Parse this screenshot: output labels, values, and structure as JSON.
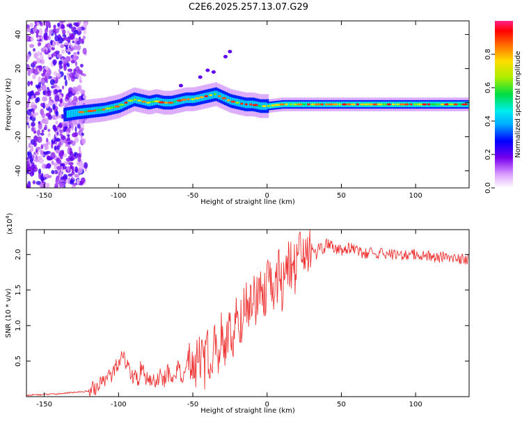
{
  "title": "C2E6.2025.257.13.07.G29",
  "chart_data": [
    {
      "type": "heatmap",
      "xlabel": "Height of straight line (km)",
      "ylabel": "Frequency (Hz)",
      "xlim": [
        -162,
        136
      ],
      "ylim": [
        -50,
        48
      ],
      "xticks": [
        -150,
        -100,
        -50,
        0,
        50,
        100
      ],
      "yticks": [
        -40,
        -20,
        0,
        20,
        40
      ],
      "grid": false,
      "ridge": {
        "x": [
          -137,
          -130,
          -120,
          -110,
          -100,
          -95,
          -90,
          -85,
          -80,
          -75,
          -70,
          -65,
          -60,
          -55,
          -50,
          -45,
          -40,
          -35,
          -30,
          -25,
          -20,
          -15,
          -10,
          -5,
          0,
          10,
          20,
          40,
          60,
          80,
          100,
          120,
          135
        ],
        "y": [
          -7,
          -6,
          -5,
          -4,
          -2,
          0,
          2,
          1,
          0,
          1,
          0,
          0,
          1,
          2,
          2,
          3,
          4,
          5,
          3,
          1,
          0,
          -1,
          -1,
          -2,
          -2,
          -1,
          -1,
          -1,
          -1,
          -1,
          -1,
          -1,
          -1
        ]
      },
      "colorbar": {
        "label": "Normalized spectral amplitude",
        "range": [
          0,
          1
        ],
        "ticks": [
          0.0,
          0.2,
          0.4,
          0.6,
          0.8
        ]
      }
    },
    {
      "type": "line",
      "xlabel": "Height of straight line (km)",
      "ylabel": "SNR (10 * v/v)",
      "y_multiplier": "(x10",
      "y_multiplier_exp": "4",
      "y_multiplier_close": ")",
      "xlim": [
        -162,
        136
      ],
      "ylim": [
        0,
        2.35
      ],
      "xticks": [
        -150,
        -100,
        -50,
        0,
        50,
        100
      ],
      "yticks": [
        0.5,
        1.0,
        1.5,
        2.0
      ],
      "grid": false,
      "color": "#ee3333",
      "series": [
        {
          "x": [
            -162,
            -150,
            -140,
            -130,
            -120,
            -115,
            -110,
            -105,
            -102,
            -100,
            -97,
            -95,
            -92,
            -90,
            -87,
            -85,
            -82,
            -80,
            -77,
            -75,
            -72,
            -70,
            -67,
            -65,
            -62,
            -60,
            -57,
            -55,
            -52,
            -50,
            -47,
            -45,
            -42,
            -40,
            -38,
            -35,
            -33,
            -30,
            -28,
            -25,
            -23,
            -20,
            -18,
            -15,
            -13,
            -10,
            -8,
            -5,
            -3,
            0,
            3,
            5,
            8,
            10,
            13,
            15,
            18,
            20,
            23,
            25,
            28,
            30,
            33,
            35,
            38,
            40,
            45,
            50,
            55,
            60,
            65,
            70,
            75,
            80,
            85,
            90,
            95,
            100,
            105,
            110,
            115,
            120,
            125,
            130,
            136
          ],
          "y": [
            0.02,
            0.03,
            0.04,
            0.06,
            0.08,
            0.12,
            0.2,
            0.3,
            0.4,
            0.5,
            0.55,
            0.45,
            0.35,
            0.28,
            0.22,
            0.4,
            0.3,
            0.2,
            0.25,
            0.15,
            0.3,
            0.2,
            0.35,
            0.25,
            0.3,
            0.4,
            0.25,
            0.35,
            0.45,
            0.3,
            0.5,
            0.6,
            0.4,
            0.7,
            0.55,
            0.8,
            0.65,
            0.9,
            0.7,
            1.0,
            0.85,
            1.2,
            1.0,
            1.4,
            1.2,
            1.5,
            1.3,
            1.6,
            1.45,
            1.5,
            1.7,
            1.55,
            1.8,
            1.6,
            1.7,
            1.9,
            1.75,
            1.85,
            2.0,
            1.9,
            2.05,
            2.1,
            2.0,
            2.1,
            2.05,
            2.15,
            2.1,
            2.05,
            2.1,
            2.05,
            2.0,
            2.05,
            2.0,
            2.02,
            2.0,
            2.0,
            1.98,
            2.0,
            1.97,
            1.98,
            1.96,
            1.97,
            1.95,
            1.93,
            1.92
          ]
        }
      ]
    }
  ]
}
